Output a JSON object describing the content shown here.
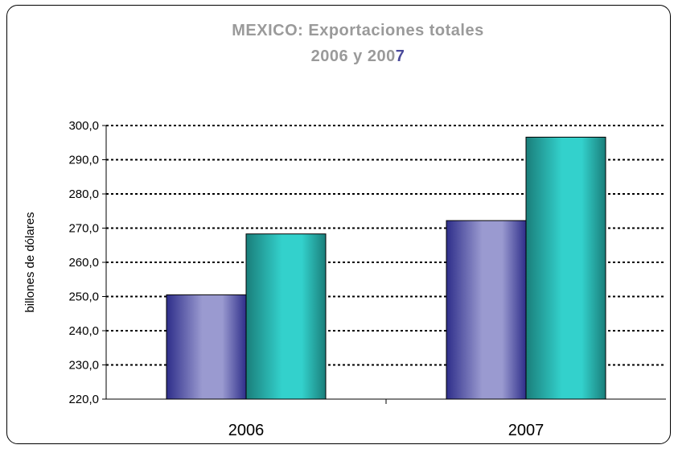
{
  "chart_data": {
    "type": "bar",
    "title_line1": "MEXICO: Exportaciones totales",
    "title_line2_main": "2006 y 200",
    "title_line2_accent": "7",
    "ylabel": "billones de dólares",
    "xlabel": "",
    "categories": [
      "2006",
      "2007"
    ],
    "series": [
      {
        "values": [
          250.5,
          272.2
        ],
        "color_dark": "#2e2e8a",
        "color_light": "#9a9ad0"
      },
      {
        "values": [
          268.3,
          296.6
        ],
        "color_dark": "#1a7e7a",
        "color_light": "#33d1cc"
      }
    ],
    "ylim": [
      220,
      300
    ],
    "yticks": [
      "220,0",
      "230,0",
      "240,0",
      "250,0",
      "260,0",
      "270,0",
      "280,0",
      "290,0",
      "300,0"
    ],
    "ytick_values": [
      220,
      230,
      240,
      250,
      260,
      270,
      280,
      290,
      300
    ],
    "grid": true,
    "grid_style": "dotted"
  }
}
